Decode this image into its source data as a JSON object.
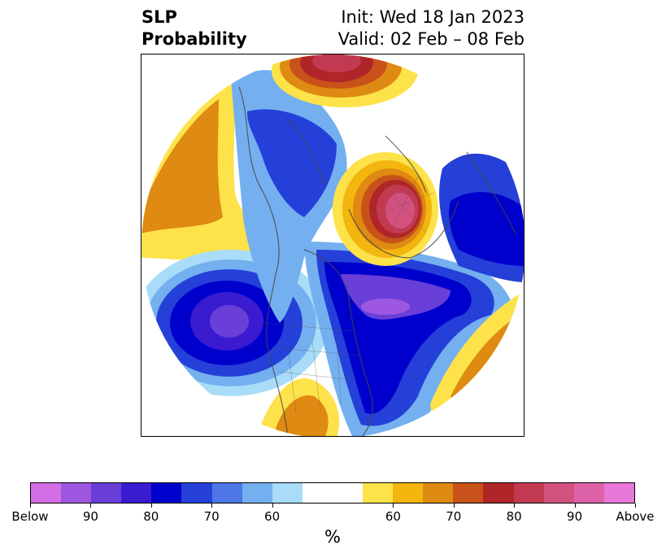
{
  "header": {
    "title_line1": "SLP",
    "title_line2": "Probability",
    "init_text": "Init: Wed 18 Jan 2023",
    "valid_text": "Valid: 02 Feb – 08 Feb"
  },
  "colorbar": {
    "unit_label": "%",
    "tick_labels": [
      "Below",
      "90",
      "80",
      "70",
      "60",
      "60",
      "70",
      "80",
      "90",
      "Above"
    ],
    "colors": [
      "#d36ee6",
      "#9d57e0",
      "#6a3ed8",
      "#3a1bd0",
      "#0000cc",
      "#2540d8",
      "#4d75e6",
      "#74b0f0",
      "#a9dcf9",
      "#ffffff",
      "#ffffff",
      "#fde24a",
      "#f3b60e",
      "#df8a12",
      "#c8521a",
      "#b02628",
      "#c23a52",
      "#d2517e",
      "#dd62a8",
      "#e878d8"
    ]
  },
  "map": {
    "description_colors": {
      "below_strong": "#6a3ed8",
      "below_mid": "#0000cc",
      "below_weak": "#a9dcf9",
      "above_weak": "#fde24a",
      "above_mid": "#df8a12",
      "above_strong": "#b02628"
    }
  }
}
